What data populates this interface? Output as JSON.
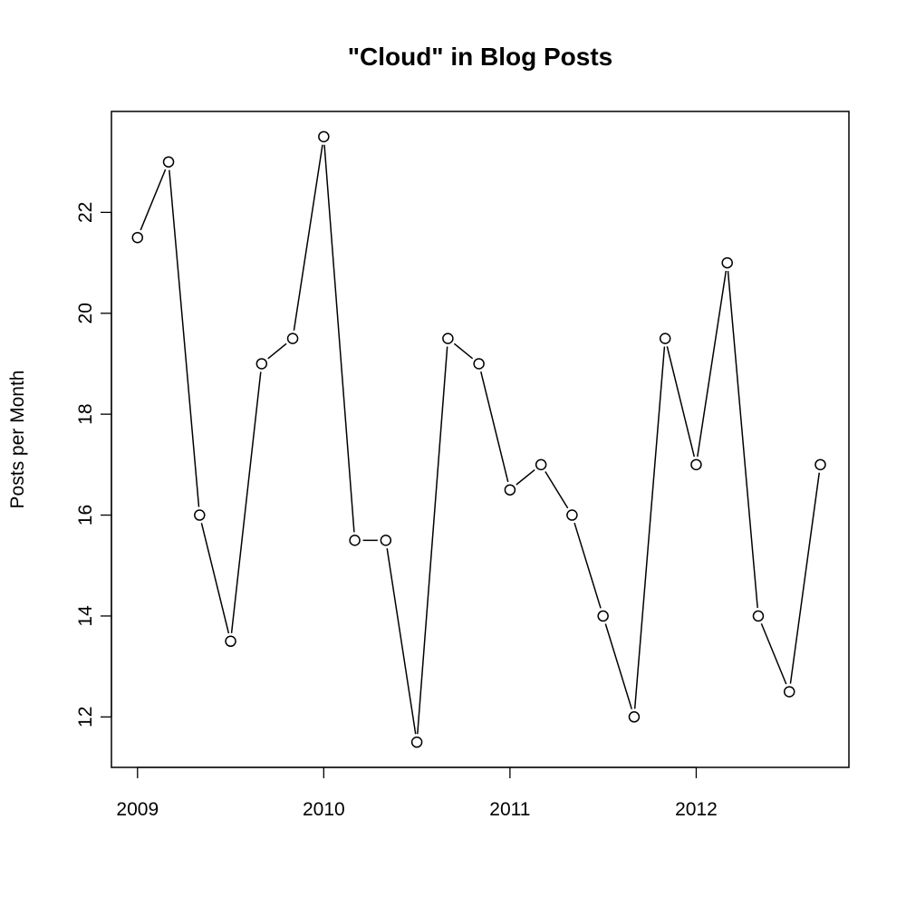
{
  "chart_data": {
    "type": "line",
    "title": "\"Cloud\" in Blog Posts",
    "xlabel": "",
    "ylabel": "Posts per Month",
    "xlim": [
      2008.86,
      2012.82
    ],
    "ylim": [
      11.0,
      24.0
    ],
    "x_ticks": [
      2009,
      2010,
      2011,
      2012
    ],
    "x_tick_labels": [
      "2009",
      "2010",
      "2011",
      "2012"
    ],
    "y_ticks": [
      12,
      14,
      16,
      18,
      20,
      22
    ],
    "y_tick_labels": [
      "12",
      "14",
      "16",
      "18",
      "20",
      "22"
    ],
    "grid": false,
    "marker": "open-circle",
    "series": [
      {
        "name": "Posts per Month",
        "color": "#000000",
        "x": [
          2009.0,
          2009.1667,
          2009.3333,
          2009.5,
          2009.6667,
          2009.8333,
          2010.0,
          2010.1667,
          2010.3333,
          2010.5,
          2010.6667,
          2010.8333,
          2011.0,
          2011.1667,
          2011.3333,
          2011.5,
          2011.6667,
          2011.8333,
          2012.0,
          2012.1667,
          2012.3333,
          2012.5,
          2012.6667
        ],
        "values": [
          21.5,
          23.0,
          16.0,
          13.5,
          19.0,
          19.5,
          23.5,
          15.5,
          15.5,
          11.5,
          19.5,
          19.0,
          16.5,
          17.0,
          16.0,
          14.0,
          12.0,
          19.5,
          17.0,
          21.0,
          14.0,
          12.5,
          17.0
        ]
      }
    ]
  }
}
